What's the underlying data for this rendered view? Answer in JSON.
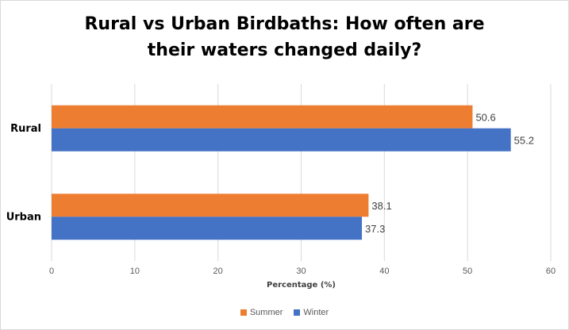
{
  "chart_data": {
    "type": "bar",
    "orientation": "horizontal",
    "title_lines": [
      "Rural vs Urban Birdbaths: How often are",
      "their waters changed daily?"
    ],
    "categories": [
      "Rural",
      "Urban"
    ],
    "series": [
      {
        "name": "Summer",
        "color": "#ed7d31",
        "values": [
          50.6,
          38.1
        ]
      },
      {
        "name": "Winter",
        "color": "#4472c4",
        "values": [
          55.2,
          37.3
        ]
      }
    ],
    "xlabel": "Percentage (%)",
    "ylabel": "",
    "xlim": [
      0,
      60
    ],
    "ticks": [
      0,
      10,
      20,
      30,
      40,
      50,
      60
    ],
    "grid": true,
    "legend_position": "bottom"
  }
}
